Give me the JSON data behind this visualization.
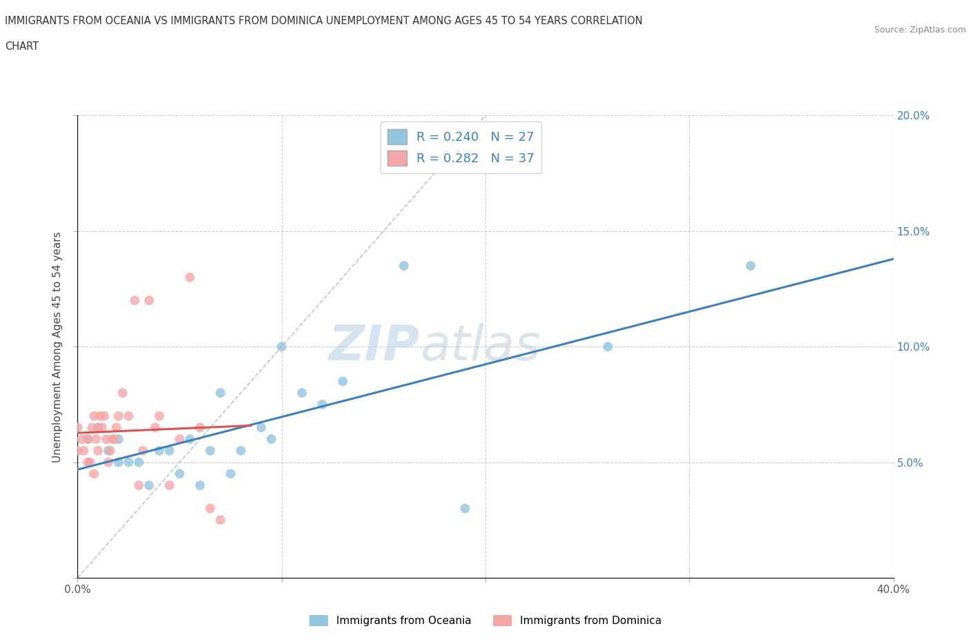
{
  "title_line1": "IMMIGRANTS FROM OCEANIA VS IMMIGRANTS FROM DOMINICA UNEMPLOYMENT AMONG AGES 45 TO 54 YEARS CORRELATION",
  "title_line2": "CHART",
  "source": "Source: ZipAtlas.com",
  "ylabel": "Unemployment Among Ages 45 to 54 years",
  "xlim": [
    0.0,
    0.4
  ],
  "ylim": [
    0.0,
    0.2
  ],
  "legend_R1": "R = 0.240",
  "legend_N1": "N = 27",
  "legend_R2": "R = 0.282",
  "legend_N2": "N = 37",
  "color_oceania": "#92c5de",
  "color_dominica": "#f4a6a6",
  "trendline_color_oceania": "#3a80c1",
  "trendline_color_dominica": "#d9534f",
  "watermark_zip": "ZIP",
  "watermark_atlas": "atlas",
  "oceania_x": [
    0.005,
    0.01,
    0.015,
    0.02,
    0.02,
    0.025,
    0.03,
    0.035,
    0.04,
    0.045,
    0.05,
    0.055,
    0.06,
    0.065,
    0.07,
    0.075,
    0.08,
    0.09,
    0.095,
    0.1,
    0.11,
    0.12,
    0.13,
    0.16,
    0.19,
    0.26,
    0.33
  ],
  "oceania_y": [
    0.06,
    0.065,
    0.055,
    0.05,
    0.06,
    0.05,
    0.05,
    0.04,
    0.055,
    0.055,
    0.045,
    0.06,
    0.04,
    0.055,
    0.08,
    0.045,
    0.055,
    0.065,
    0.06,
    0.1,
    0.08,
    0.075,
    0.085,
    0.135,
    0.03,
    0.1,
    0.135
  ],
  "dominica_x": [
    0.0,
    0.0,
    0.002,
    0.003,
    0.005,
    0.005,
    0.006,
    0.007,
    0.008,
    0.008,
    0.009,
    0.01,
    0.01,
    0.011,
    0.012,
    0.013,
    0.014,
    0.015,
    0.016,
    0.017,
    0.018,
    0.019,
    0.02,
    0.022,
    0.025,
    0.028,
    0.03,
    0.032,
    0.035,
    0.038,
    0.04,
    0.045,
    0.05,
    0.055,
    0.06,
    0.065,
    0.07
  ],
  "dominica_y": [
    0.055,
    0.065,
    0.06,
    0.055,
    0.05,
    0.06,
    0.05,
    0.065,
    0.045,
    0.07,
    0.06,
    0.055,
    0.065,
    0.07,
    0.065,
    0.07,
    0.06,
    0.05,
    0.055,
    0.06,
    0.06,
    0.065,
    0.07,
    0.08,
    0.07,
    0.12,
    0.04,
    0.055,
    0.12,
    0.065,
    0.07,
    0.04,
    0.06,
    0.13,
    0.065,
    0.03,
    0.025
  ],
  "oceania_trendline_x": [
    0.0,
    0.4
  ],
  "dominica_trendline_x_max": 0.085
}
